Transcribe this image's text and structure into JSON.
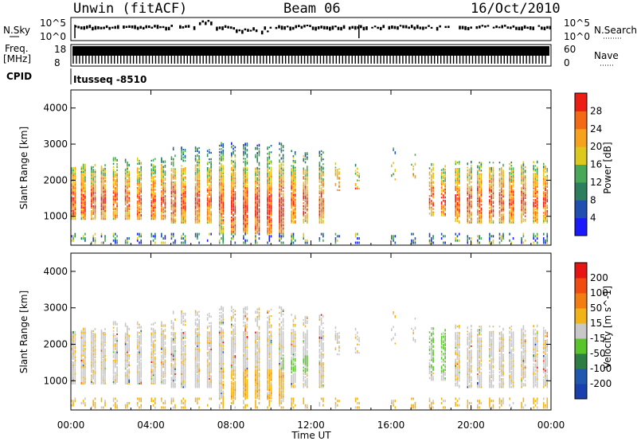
{
  "header": {
    "station": "Unwin (fitACF)",
    "beam": "Beam 06",
    "date": "16/Oct/2010"
  },
  "noise_panel": {
    "left_label": "N.Sky",
    "right_label": "N.Search",
    "y_ticks": [
      "10^5",
      "10^0"
    ]
  },
  "freq_panel": {
    "left_label_1": "Freq.",
    "left_label_2": "[MHz]",
    "left_ticks": [
      "18",
      "8"
    ],
    "right_label": "Nave",
    "right_ticks": [
      "60",
      "0"
    ]
  },
  "cpid": {
    "label": "CPID",
    "value": "Itusseq -8510"
  },
  "colors": {
    "power_scale": [
      "#1a1aff",
      "#1f4fb0",
      "#2c7f5e",
      "#47a957",
      "#dcc91c",
      "#f6a21a",
      "#f46a14",
      "#ee1d14"
    ],
    "velocity_scale": [
      "#1a3fae",
      "#2058b0",
      "#2e7d42",
      "#5ac52b",
      "#c8c8c8",
      "#f2b414",
      "#f47d12",
      "#f14b10",
      "#e81414"
    ]
  },
  "chart_data": [
    {
      "type": "heatmap",
      "title": "Power",
      "xlabel": "",
      "ylabel": "Slant Range [km]",
      "y_ticks": [
        "1000",
        "2000",
        "3000",
        "4000"
      ],
      "ylim": [
        200,
        4500
      ],
      "colorbar": {
        "label": "Power [dB]",
        "ticks": [
          "4",
          "8",
          "12",
          "16",
          "20",
          "24",
          "28"
        ],
        "range": [
          0,
          32
        ]
      }
    },
    {
      "type": "heatmap",
      "title": "Velocity",
      "xlabel": "Time UT",
      "ylabel": "Slant Range [km]",
      "y_ticks": [
        "1000",
        "2000",
        "3000",
        "4000"
      ],
      "ylim": [
        200,
        4500
      ],
      "x_ticks": [
        "00:00",
        "04:00",
        "08:00",
        "12:00",
        "16:00",
        "20:00",
        "00:00"
      ],
      "xlim": [
        0,
        24
      ],
      "colorbar": {
        "label": "Velocity [m s^-1]",
        "ticks": [
          "200",
          "100",
          "50",
          "15",
          "-15",
          "-50",
          "-100",
          "-200"
        ]
      }
    }
  ]
}
